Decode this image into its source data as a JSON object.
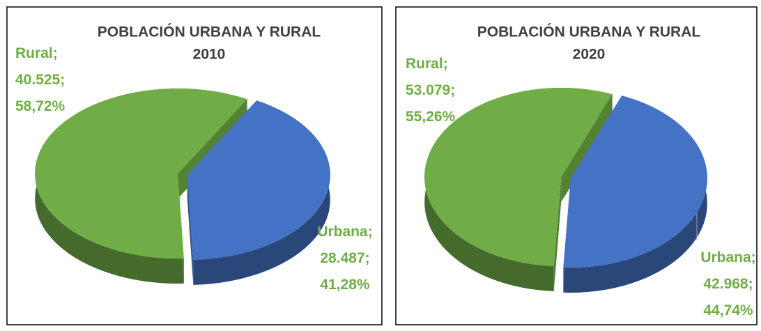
{
  "chart_data": [
    {
      "type": "pie",
      "title": "POBLACIÓN URBANA Y RURAL",
      "subtitle": "2010",
      "categories": [
        "Urbana",
        "Rural"
      ],
      "values": [
        28487,
        40525
      ],
      "value_labels": [
        "28.487",
        "40.525"
      ],
      "percents": [
        41.28,
        58.72
      ],
      "percent_labels": [
        "41,28%",
        "58,72%"
      ],
      "label_separator": ";",
      "colors": [
        "#4472c4",
        "#70ad47"
      ],
      "label_color": "#70ad47"
    },
    {
      "type": "pie",
      "title": "POBLACIÓN URBANA Y RURAL",
      "subtitle": "2020",
      "categories": [
        "Urbana",
        "Rural"
      ],
      "values": [
        42968,
        53079
      ],
      "value_labels": [
        "42.968",
        "53.079"
      ],
      "percents": [
        44.74,
        55.26
      ],
      "percent_labels": [
        "44,74%",
        "55,26%"
      ],
      "label_separator": ";",
      "colors": [
        "#4472c4",
        "#70ad47"
      ],
      "label_color": "#70ad47"
    }
  ]
}
